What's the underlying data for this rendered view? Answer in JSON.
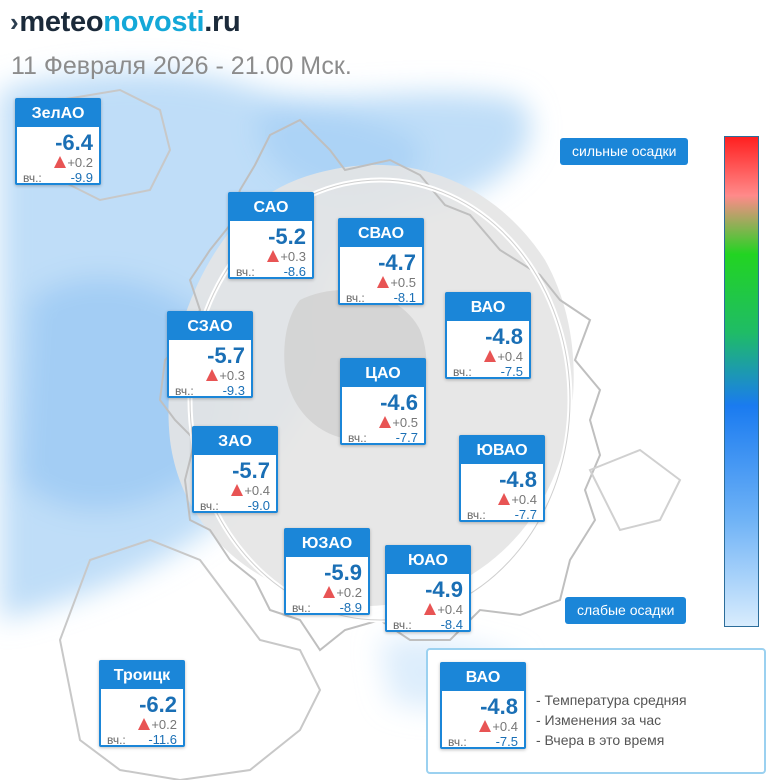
{
  "brand": {
    "part1": "meteo",
    "part2": "novosti",
    "part3": ".ru"
  },
  "datetime": "11 Февраля 2026 - 21.00 Мск.",
  "districts": [
    {
      "name": "ЗелАО",
      "temp": "-6.4",
      "change": "+0.2",
      "yesterday_label": "вч.:",
      "yesterday": "-9.9"
    },
    {
      "name": "САО",
      "temp": "-5.2",
      "change": "+0.3",
      "yesterday_label": "вч.:",
      "yesterday": "-8.6"
    },
    {
      "name": "СВАО",
      "temp": "-4.7",
      "change": "+0.5",
      "yesterday_label": "вч.:",
      "yesterday": "-8.1"
    },
    {
      "name": "ВАО",
      "temp": "-4.8",
      "change": "+0.4",
      "yesterday_label": "вч.:",
      "yesterday": "-7.5"
    },
    {
      "name": "СЗАО",
      "temp": "-5.7",
      "change": "+0.3",
      "yesterday_label": "вч.:",
      "yesterday": "-9.3"
    },
    {
      "name": "ЦАО",
      "temp": "-4.6",
      "change": "+0.5",
      "yesterday_label": "вч.:",
      "yesterday": "-7.7"
    },
    {
      "name": "ЗАО",
      "temp": "-5.7",
      "change": "+0.4",
      "yesterday_label": "вч.:",
      "yesterday": "-9.0"
    },
    {
      "name": "ЮВАО",
      "temp": "-4.8",
      "change": "+0.4",
      "yesterday_label": "вч.:",
      "yesterday": "-7.7"
    },
    {
      "name": "ЮЗАО",
      "temp": "-5.9",
      "change": "+0.2",
      "yesterday_label": "вч.:",
      "yesterday": "-8.9"
    },
    {
      "name": "ЮАО",
      "temp": "-4.9",
      "change": "+0.4",
      "yesterday_label": "вч.:",
      "yesterday": "-8.4"
    },
    {
      "name": "Троицк",
      "temp": "-6.2",
      "change": "+0.2",
      "yesterday_label": "вч.:",
      "yesterday": "-11.6"
    }
  ],
  "precip_scale": {
    "top_label": "сильные осадки",
    "bottom_label": "слабые осадки",
    "colors": [
      "#ff2020",
      "#ff8a8a",
      "#22d422",
      "#1fbc66",
      "#1a7bf0",
      "#6eb2f6",
      "#d8ecfd"
    ]
  },
  "legend": {
    "example": {
      "name": "ВАО",
      "temp": "-4.8",
      "change": "+0.4",
      "yesterday_label": "вч.:",
      "yesterday": "-7.5"
    },
    "lines": [
      "- Температура средняя",
      "- Изменения за час",
      "- Вчера в это время"
    ]
  },
  "colors": {
    "card_header": "#1b86d8",
    "temp_text": "#1a6fb5",
    "change_arrow": "#e85454"
  }
}
